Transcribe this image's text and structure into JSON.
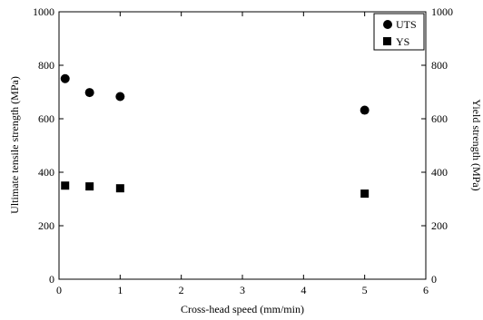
{
  "chart_data": {
    "type": "scatter",
    "xlabel": "Cross-head speed (mm/min)",
    "ylabel": "Ultimate tensile strength (MPa)",
    "y2label": "Yield strength (MPa)",
    "xlim": [
      0,
      6
    ],
    "ylim": [
      0,
      1000
    ],
    "y2lim": [
      0,
      1000
    ],
    "xticks": [
      "0",
      "1",
      "2",
      "3",
      "4",
      "5",
      "6"
    ],
    "yticks": [
      "0",
      "200",
      "400",
      "600",
      "800",
      "1000"
    ],
    "y2ticks": [
      "0",
      "200",
      "400",
      "600",
      "800",
      "1000"
    ],
    "grid": false,
    "legend": "top-right",
    "series": [
      {
        "name": "UTS",
        "marker": "circle",
        "axis": "left",
        "points": [
          {
            "x": 0.1,
            "y": 750
          },
          {
            "x": 0.5,
            "y": 698
          },
          {
            "x": 1.0,
            "y": 683
          },
          {
            "x": 5.0,
            "y": 632
          }
        ]
      },
      {
        "name": "YS",
        "marker": "square",
        "axis": "right",
        "points": [
          {
            "x": 0.1,
            "y": 350
          },
          {
            "x": 0.5,
            "y": 347
          },
          {
            "x": 1.0,
            "y": 340
          },
          {
            "x": 5.0,
            "y": 320
          }
        ]
      }
    ],
    "color": "#000000"
  }
}
